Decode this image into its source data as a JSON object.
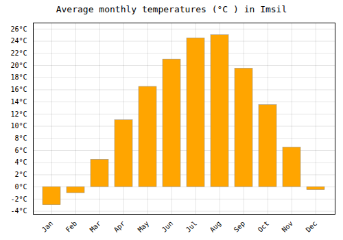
{
  "chart_data": {
    "type": "bar",
    "title": "Average monthly temperatures (°C ) in Imsil",
    "categories": [
      "Jan",
      "Feb",
      "Mar",
      "Apr",
      "May",
      "Jun",
      "Jul",
      "Aug",
      "Sep",
      "Oct",
      "Nov",
      "Dec"
    ],
    "values": [
      -3.0,
      -1.0,
      4.5,
      11.0,
      16.5,
      21.0,
      24.5,
      25.0,
      19.5,
      13.5,
      6.5,
      -0.5
    ],
    "color": "#FFA500",
    "ylim": [
      -4.5,
      27
    ],
    "yticks": [
      {
        "value": -4,
        "label": "-4°C"
      },
      {
        "value": -2,
        "label": "-2°C"
      },
      {
        "value": 0,
        "label": "0°C"
      },
      {
        "value": 2,
        "label": "2°C"
      },
      {
        "value": 4,
        "label": "4°C"
      },
      {
        "value": 6,
        "label": "6°C"
      },
      {
        "value": 8,
        "label": "8°C"
      },
      {
        "value": 10,
        "label": "10°C"
      },
      {
        "value": 12,
        "label": "12°C"
      },
      {
        "value": 14,
        "label": "14°C"
      },
      {
        "value": 16,
        "label": "16°C"
      },
      {
        "value": 18,
        "label": "18°C"
      },
      {
        "value": 20,
        "label": "20°C"
      },
      {
        "value": 22,
        "label": "22°C"
      },
      {
        "value": 24,
        "label": "24°C"
      },
      {
        "value": 26,
        "label": "26°C"
      }
    ],
    "grid": true
  }
}
